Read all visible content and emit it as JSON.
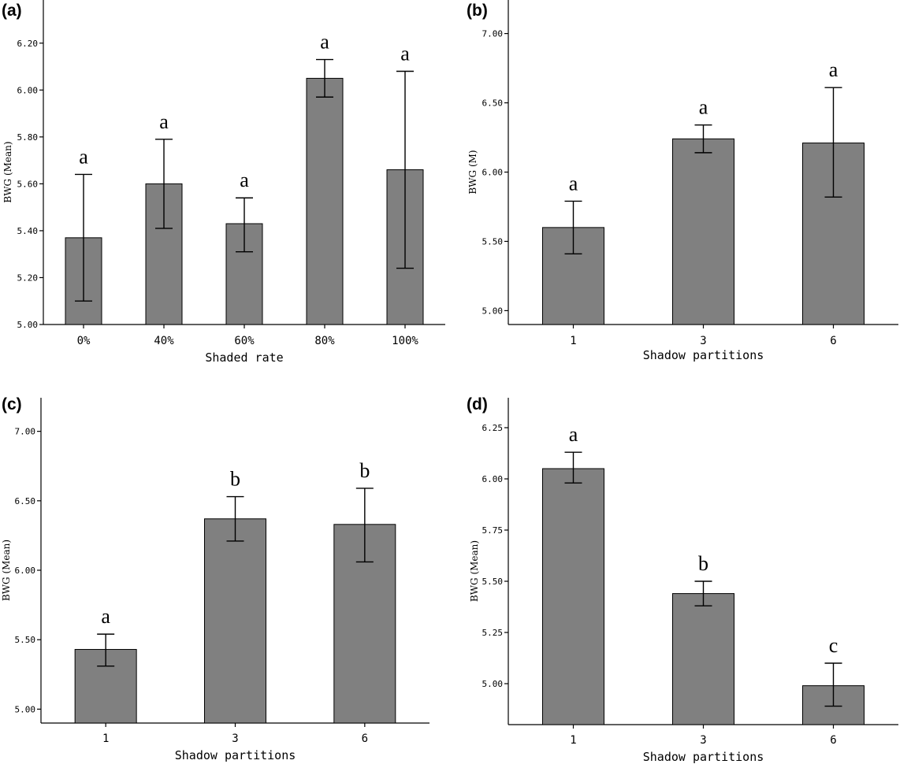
{
  "chart_data": [
    {
      "panel": "(a)",
      "type": "bar",
      "categories": [
        "0%",
        "40%",
        "60%",
        "80%",
        "100%"
      ],
      "values": [
        5.37,
        5.6,
        5.43,
        6.05,
        5.66
      ],
      "err_low": [
        5.1,
        5.41,
        5.31,
        5.97,
        5.24
      ],
      "err_high": [
        5.64,
        5.79,
        5.54,
        6.13,
        6.08
      ],
      "letters": [
        "a",
        "a",
        "a",
        "a",
        "a"
      ],
      "xlabel": "Shaded rate",
      "ylabel": "BWG (Mean)",
      "ylim": [
        5.0,
        6.3
      ],
      "yticks": [
        5.0,
        5.2,
        5.4,
        5.6,
        5.8,
        6.0,
        6.2
      ],
      "ytick_labels": [
        "5.00",
        "5.20",
        "5.40",
        "5.60",
        "5.80",
        "6.00",
        "6.20"
      ],
      "grid": false,
      "bar_color": "#808080"
    },
    {
      "panel": "(b)",
      "type": "bar",
      "categories": [
        "1",
        "3",
        "6"
      ],
      "values": [
        5.6,
        6.24,
        6.21
      ],
      "err_low": [
        5.41,
        6.14,
        5.82
      ],
      "err_high": [
        5.79,
        6.34,
        6.61
      ],
      "letters": [
        "a",
        "a",
        "a"
      ],
      "xlabel": "Shadow partitions",
      "ylabel": "BWG (M)",
      "ylim": [
        4.9,
        7.1
      ],
      "yticks": [
        5.0,
        5.5,
        6.0,
        6.5,
        7.0
      ],
      "ytick_labels": [
        "5.00",
        "5.50",
        "6.00",
        "6.50",
        "7.00"
      ],
      "grid": false,
      "bar_color": "#808080"
    },
    {
      "panel": "(c)",
      "type": "bar",
      "categories": [
        "1",
        "3",
        "6"
      ],
      "values": [
        5.43,
        6.37,
        6.33
      ],
      "err_low": [
        5.31,
        6.21,
        6.06
      ],
      "err_high": [
        5.54,
        6.53,
        6.59
      ],
      "letters": [
        "a",
        "b",
        "b"
      ],
      "xlabel": "Shadow partitions",
      "ylabel": "BWG (Mean)",
      "ylim": [
        4.9,
        7.1
      ],
      "yticks": [
        5.0,
        5.5,
        6.0,
        6.5,
        7.0
      ],
      "ytick_labels": [
        "5.00",
        "5.50",
        "6.00",
        "6.50",
        "7.00"
      ],
      "grid": false,
      "bar_color": "#808080"
    },
    {
      "panel": "(d)",
      "type": "bar",
      "categories": [
        "1",
        "3",
        "6"
      ],
      "values": [
        6.05,
        5.44,
        4.99
      ],
      "err_low": [
        5.98,
        5.38,
        4.89
      ],
      "err_high": [
        6.13,
        5.5,
        5.1
      ],
      "letters": [
        "a",
        "b",
        "c"
      ],
      "xlabel": "Shadow partitions",
      "ylabel": "BWG (Mean)",
      "ylim": [
        4.8,
        6.3
      ],
      "yticks": [
        5.0,
        5.25,
        5.5,
        5.75,
        6.0,
        6.25
      ],
      "ytick_labels": [
        "5.00",
        "5.25",
        "5.50",
        "5.75",
        "6.00",
        "6.25"
      ],
      "grid": false,
      "bar_color": "#808080"
    }
  ]
}
